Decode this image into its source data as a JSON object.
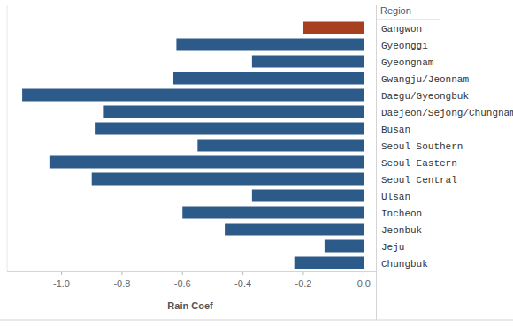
{
  "chart_data": {
    "type": "bar",
    "orientation": "horizontal",
    "x_label": "Rain Coef",
    "y_label": "Region",
    "categories": [
      "Gangwon",
      "Gyeonggi",
      "Gyeongnam",
      "Gwangju/Jeonnam",
      "Daegu/Gyeongbuk",
      "Daejeon/Sejong/Chungnam",
      "Busan",
      "Seoul Southern",
      "Seoul Eastern",
      "Seoul Central",
      "Ulsan",
      "Incheon",
      "Jeonbuk",
      "Jeju",
      "Chungbuk"
    ],
    "values": [
      -0.2,
      -0.62,
      -0.37,
      -0.63,
      -1.13,
      -0.86,
      -0.89,
      -0.55,
      -1.04,
      -0.9,
      -0.37,
      -0.6,
      -0.46,
      -0.13,
      -0.23
    ],
    "colors": [
      "#a6401f",
      "#2c5b8a",
      "#2c5b8a",
      "#2c5b8a",
      "#2c5b8a",
      "#2c5b8a",
      "#2c5b8a",
      "#2c5b8a",
      "#2c5b8a",
      "#2c5b8a",
      "#2c5b8a",
      "#2c5b8a",
      "#2c5b8a",
      "#2c5b8a",
      "#2c5b8a"
    ],
    "xlim": [
      -1.18,
      0.04
    ],
    "xticks": [
      {
        "value": -1,
        "label": "-1.0"
      },
      -0.8,
      -0.6,
      -0.4,
      -0.2,
      {
        "value": 0,
        "label": "0.0"
      }
    ],
    "grid": false
  }
}
